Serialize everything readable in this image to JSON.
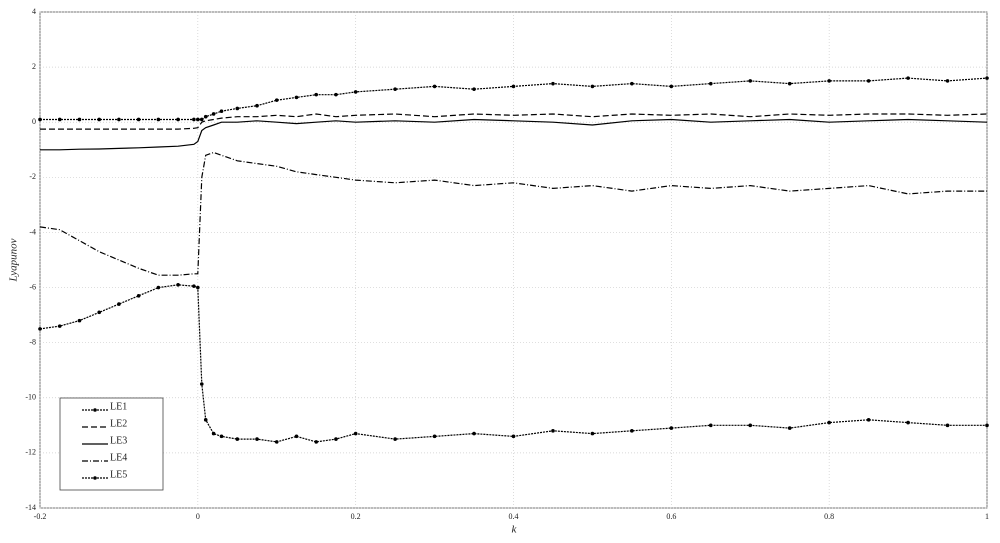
{
  "chart_data": {
    "type": "line",
    "x_label": "k",
    "y_label": "Lyapunov",
    "x": [
      -0.2,
      -0.175,
      -0.15,
      -0.125,
      -0.1,
      -0.075,
      -0.05,
      -0.025,
      -0.005,
      0,
      0.005,
      0.01,
      0.02,
      0.03,
      0.05,
      0.075,
      0.1,
      0.125,
      0.15,
      0.175,
      0.2,
      0.25,
      0.3,
      0.35,
      0.4,
      0.45,
      0.5,
      0.55,
      0.6,
      0.65,
      0.7,
      0.75,
      0.8,
      0.85,
      0.9,
      0.95,
      1
    ],
    "series": [
      {
        "name": "LE1",
        "color": "#000000",
        "style": "dot-marker",
        "values": [
          0.1,
          0.1,
          0.1,
          0.1,
          0.1,
          0.1,
          0.1,
          0.1,
          0.1,
          0.1,
          0.1,
          0.2,
          0.3,
          0.4,
          0.5,
          0.6,
          0.8,
          0.9,
          1.0,
          1.0,
          1.1,
          1.2,
          1.3,
          1.2,
          1.3,
          1.4,
          1.3,
          1.4,
          1.3,
          1.4,
          1.5,
          1.4,
          1.5,
          1.5,
          1.6,
          1.5,
          1.6
        ]
      },
      {
        "name": "LE2",
        "color": "#000000",
        "style": "dash",
        "values": [
          -0.25,
          -0.25,
          -0.25,
          -0.25,
          -0.25,
          -0.25,
          -0.25,
          -0.25,
          -0.22,
          -0.2,
          0.0,
          0.05,
          0.1,
          0.15,
          0.2,
          0.2,
          0.25,
          0.2,
          0.3,
          0.2,
          0.25,
          0.3,
          0.2,
          0.3,
          0.25,
          0.3,
          0.2,
          0.3,
          0.25,
          0.3,
          0.2,
          0.3,
          0.25,
          0.3,
          0.3,
          0.25,
          0.3
        ]
      },
      {
        "name": "LE3",
        "color": "#000000",
        "style": "solid",
        "values": [
          -1.0,
          -1.0,
          -0.98,
          -0.97,
          -0.95,
          -0.93,
          -0.9,
          -0.87,
          -0.8,
          -0.7,
          -0.3,
          -0.2,
          -0.1,
          0.0,
          0.0,
          0.05,
          0.0,
          -0.05,
          0.0,
          0.05,
          0.0,
          0.05,
          0.0,
          0.1,
          0.05,
          0.0,
          -0.1,
          0.05,
          0.1,
          0.0,
          0.05,
          0.1,
          0.0,
          0.05,
          0.1,
          0.05,
          0.0
        ]
      },
      {
        "name": "LE4",
        "color": "#000000",
        "style": "dashdot",
        "values": [
          -3.8,
          -3.9,
          -4.3,
          -4.7,
          -5.0,
          -5.3,
          -5.55,
          -5.55,
          -5.5,
          -5.5,
          -2.0,
          -1.2,
          -1.1,
          -1.2,
          -1.4,
          -1.5,
          -1.6,
          -1.8,
          -1.9,
          -2.0,
          -2.1,
          -2.2,
          -2.1,
          -2.3,
          -2.2,
          -2.4,
          -2.3,
          -2.5,
          -2.3,
          -2.4,
          -2.3,
          -2.5,
          -2.4,
          -2.3,
          -2.6,
          -2.5,
          -2.5
        ]
      },
      {
        "name": "LE5",
        "color": "#000000",
        "style": "dot-marker",
        "values": [
          -7.5,
          -7.4,
          -7.2,
          -6.9,
          -6.6,
          -6.3,
          -6.0,
          -5.9,
          -5.95,
          -6.0,
          -9.5,
          -10.8,
          -11.3,
          -11.4,
          -11.5,
          -11.5,
          -11.6,
          -11.4,
          -11.6,
          -11.5,
          -11.3,
          -11.5,
          -11.4,
          -11.3,
          -11.4,
          -11.2,
          -11.3,
          -11.2,
          -11.1,
          -11.0,
          -11.0,
          -11.1,
          -10.9,
          -10.8,
          -10.9,
          -11.0,
          -11.0
        ]
      }
    ],
    "xlim": [
      -0.2,
      1
    ],
    "ylim": [
      -14,
      4
    ],
    "xticks": [
      -0.2,
      0,
      0.2,
      0.4,
      0.6,
      0.8,
      1
    ],
    "yticks": [
      -14,
      -12,
      -10,
      -8,
      -6,
      -4,
      -2,
      0,
      2,
      4
    ],
    "grid": true,
    "legend": "lower left"
  }
}
